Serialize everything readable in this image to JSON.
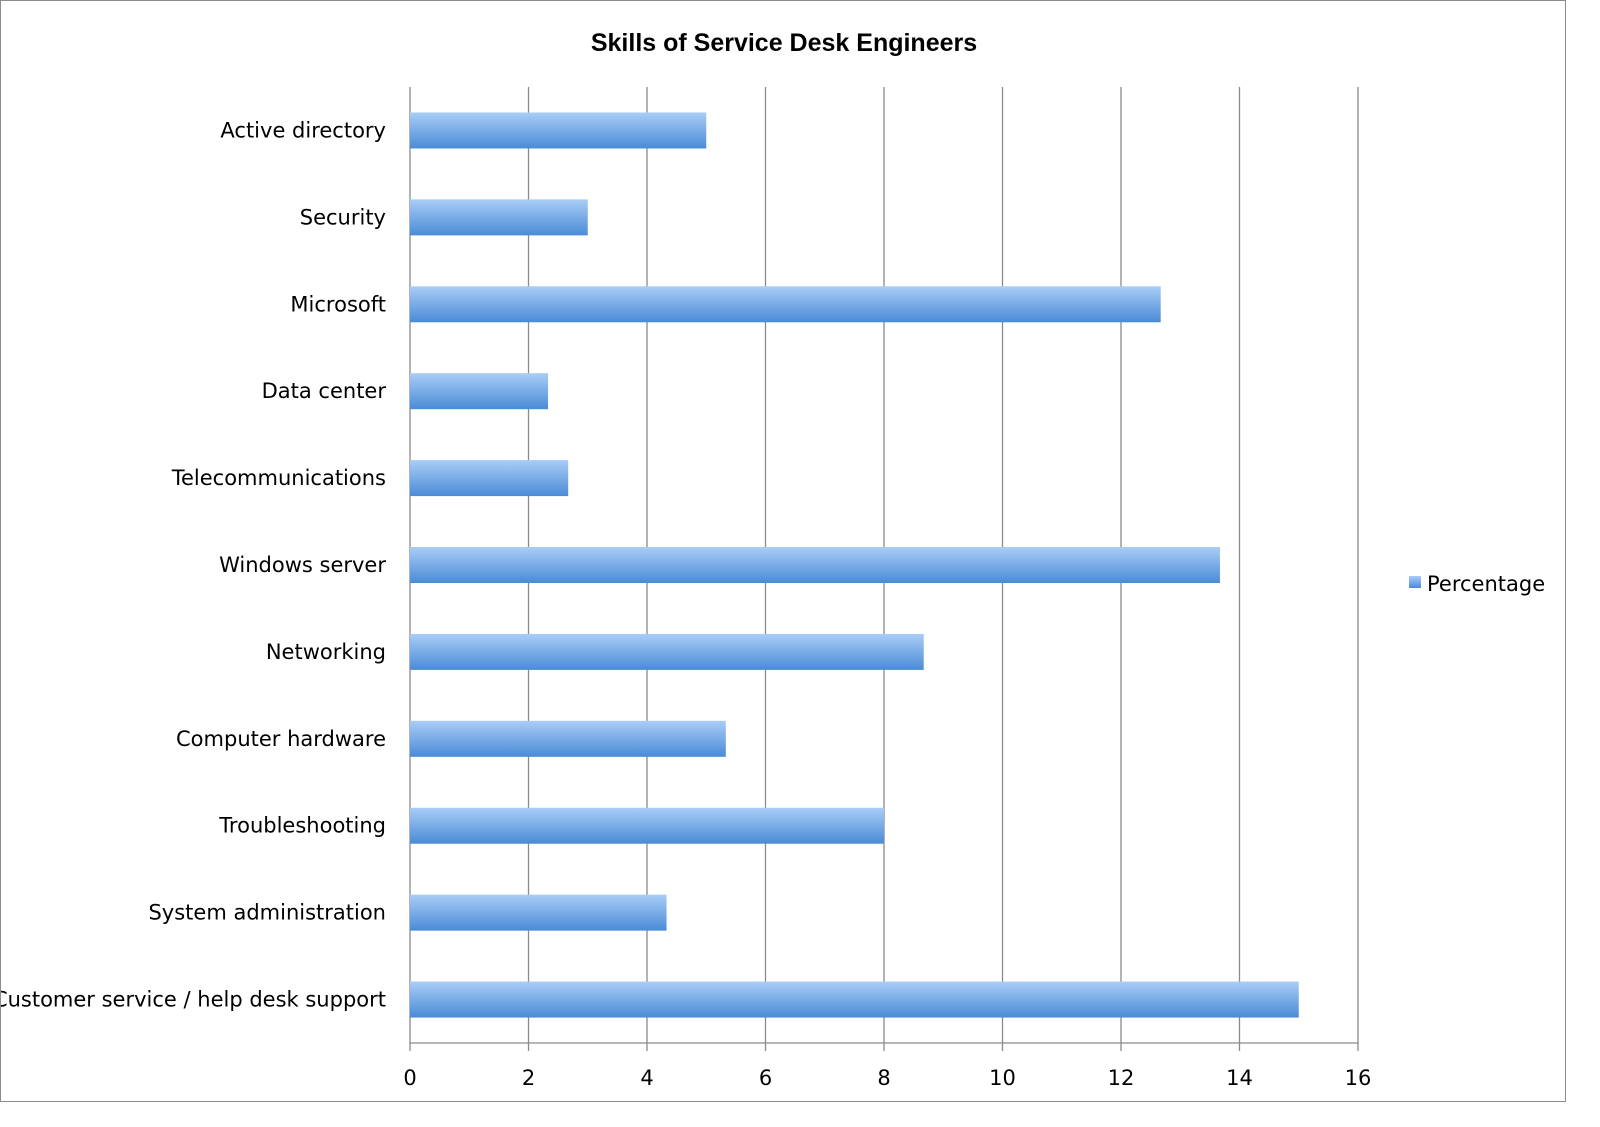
{
  "chart_data": {
    "type": "bar",
    "orientation": "horizontal",
    "title": "Skills of Service Desk Engineers",
    "xlabel": "",
    "ylabel": "",
    "categories": [
      "Active directory",
      "Security",
      "Microsoft",
      "Data center",
      "Telecommunications",
      "Windows server",
      "Networking",
      "Computer hardware",
      "Troubleshooting",
      "System administration",
      "Customer service / help desk support"
    ],
    "series": [
      {
        "name": "Percentage",
        "values": [
          5,
          3,
          12.67,
          2.33,
          2.67,
          13.67,
          8.67,
          5.33,
          8,
          4.33,
          15
        ]
      }
    ],
    "xlim": [
      0,
      16
    ],
    "ticks": [
      "0",
      "2",
      "4",
      "6",
      "8",
      "10",
      "12",
      "14",
      "16"
    ],
    "grid": true,
    "legend_position": "right",
    "bar_color": "#5b9bd5",
    "bar_color_light": "#a9cdf7",
    "bar_color_dark": "#4a8bd6"
  }
}
